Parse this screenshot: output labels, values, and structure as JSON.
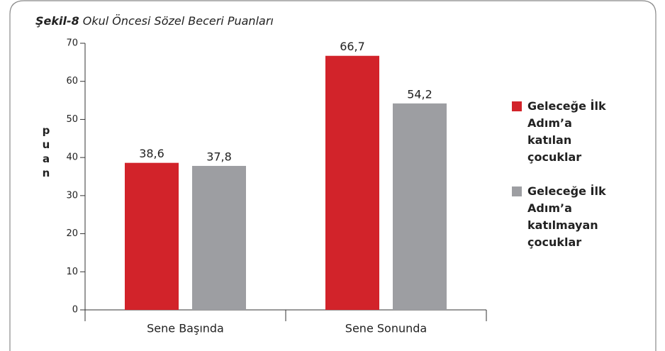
{
  "chart_data": {
    "type": "bar",
    "figure_label": "Şekil-8",
    "title": "Okul Öncesi Sözel Beceri Puanları",
    "y_label": "puan",
    "categories": [
      "Sene Başında",
      "Sene Sonunda"
    ],
    "series": [
      {
        "name": "Geleceğe İlk Adım’a katılan çocuklar",
        "color": "#d2232a",
        "values": [
          38.6,
          66.7
        ],
        "value_labels": [
          "38,6",
          "66,7"
        ]
      },
      {
        "name": "Geleceğe İlk Adım’a katılmayan çocuklar",
        "color": "#9d9ea2",
        "values": [
          37.8,
          54.2
        ],
        "value_labels": [
          "37,8",
          "54,2"
        ]
      }
    ],
    "ylim": [
      0,
      70
    ],
    "yticks": [
      0,
      10,
      20,
      30,
      40,
      50,
      60,
      70
    ],
    "legend": "right"
  }
}
